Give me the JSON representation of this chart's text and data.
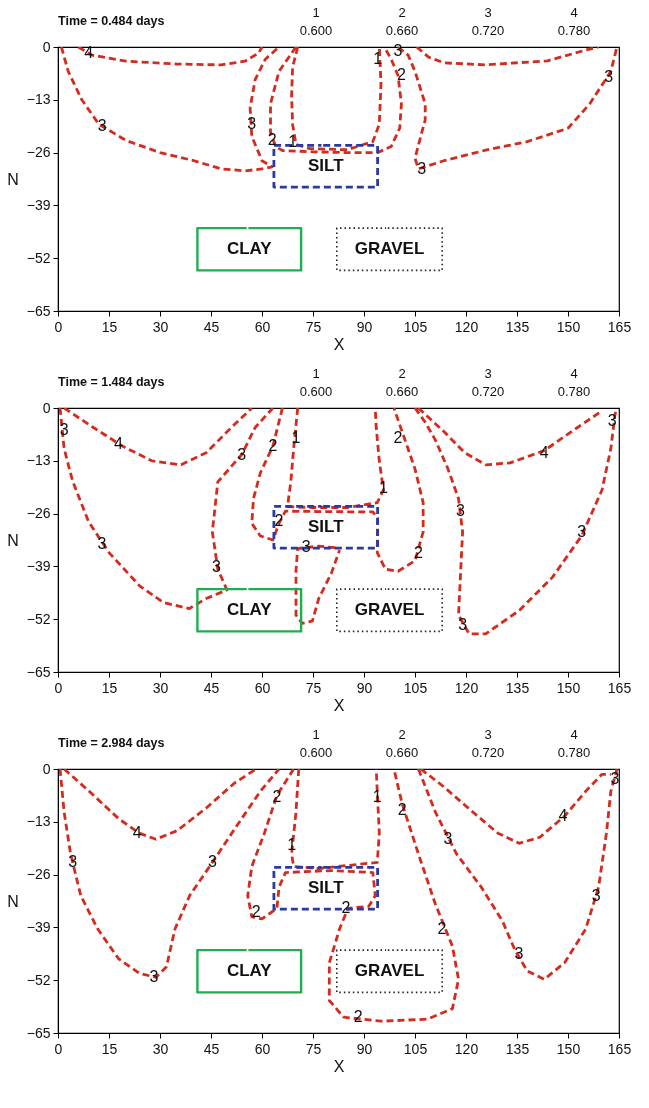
{
  "chart_data": [
    {
      "type": "line",
      "title": "Time = 0.484 days",
      "xlabel": "X",
      "ylabel": "N",
      "xlim": [
        0,
        165
      ],
      "xticks": [
        0,
        15,
        30,
        45,
        60,
        75,
        90,
        105,
        120,
        135,
        150,
        165
      ],
      "ylim": [
        -65,
        0
      ],
      "yticks": [
        0,
        -13,
        -26,
        -39,
        -52,
        -65
      ],
      "grid": false,
      "series": [
        {
          "color": "#d52b1e",
          "line_style": "dashed",
          "x": [
            6,
            10,
            20,
            35,
            48,
            55,
            59,
            60
          ],
          "values": [
            0,
            -2,
            -3.5,
            -4.2,
            -4.4,
            -3.5,
            -1.5,
            0
          ]
        },
        {
          "color": "#d52b1e",
          "line_style": "dashed",
          "x": [
            1,
            3,
            7,
            12,
            20,
            30,
            40,
            48,
            55,
            60,
            63,
            60,
            57,
            56.5,
            58,
            61,
            65
          ],
          "values": [
            0,
            -6,
            -13,
            -19,
            -23,
            -26,
            -28,
            -30,
            -30.5,
            -30,
            -29.5,
            -28,
            -22,
            -15,
            -8,
            -3,
            0
          ]
        },
        {
          "color": "#d52b1e",
          "line_style": "dashed",
          "x": [
            70,
            65,
            62.5,
            62.5,
            64,
            66,
            75,
            85,
            94,
            98,
            100.5,
            101,
            100,
            98,
            96
          ],
          "values": [
            0,
            -6,
            -14,
            -21,
            -24.5,
            -25.5,
            -25.8,
            -26,
            -26,
            -24.5,
            -20,
            -14,
            -7,
            -3,
            0
          ]
        },
        {
          "color": "#d52b1e",
          "line_style": "dashed",
          "x": [
            70.5,
            69,
            68.7,
            69,
            70,
            74,
            85,
            92.6,
            94.5,
            95,
            94.5
          ],
          "values": [
            0,
            -5,
            -12,
            -19,
            -24,
            -25,
            -25.3,
            -23.3,
            -19,
            -9,
            0
          ]
        },
        {
          "color": "#d52b1e",
          "line_style": "dashed",
          "x": [
            100,
            103,
            105,
            108,
            108,
            107,
            105,
            106,
            113.5,
            125.8,
            138,
            150,
            156.4,
            162.6,
            164.4
          ],
          "values": [
            0,
            -2,
            -6,
            -14,
            -18,
            -21,
            -27.4,
            -30,
            -28,
            -25.4,
            -23.3,
            -20,
            -14,
            -6,
            0
          ]
        },
        {
          "color": "#d52b1e",
          "line_style": "dashed",
          "x": [
            105.5,
            109,
            113.5,
            125.8,
            144,
            155,
            159
          ],
          "values": [
            0,
            -2.5,
            -3.9,
            -4.4,
            -3.4,
            -0.8,
            0
          ]
        },
        {
          "name": "SILT",
          "color": "#2b3aa0",
          "line_style": "dashed",
          "x": [
            78,
            94,
            94,
            63.5,
            63.5,
            77.5
          ],
          "values": [
            -24.2,
            -24.2,
            -34.5,
            -34.5,
            -24.2,
            -24.2
          ]
        },
        {
          "name": "CLAY",
          "color": "#1fae4f",
          "line_style": "solid",
          "x": [
            56,
            71.5,
            71.5,
            41,
            41,
            55.5
          ],
          "values": [
            -44.6,
            -44.6,
            -55,
            -55,
            -44.6,
            -44.6
          ]
        },
        {
          "name": "GRAVEL",
          "color": "#222222",
          "line_style": "dotted",
          "x": [
            97,
            113,
            113,
            82,
            82,
            96.5
          ],
          "values": [
            -44.6,
            -44.6,
            -55,
            -55,
            -44.6,
            -44.6
          ]
        }
      ],
      "annotations": [
        "1",
        "0.600",
        "2",
        "0.660",
        "3",
        "0.720",
        "4",
        "0.780",
        {
          "text": "4",
          "x": 9,
          "y": -1.5
        },
        {
          "text": "3",
          "x": 13,
          "y": -19.5
        },
        {
          "text": "3",
          "x": 57,
          "y": -19
        },
        {
          "text": "2",
          "x": 63,
          "y": -23
        },
        {
          "text": "1",
          "x": 69,
          "y": -23.5
        },
        {
          "text": "1",
          "x": 94,
          "y": -3
        },
        {
          "text": "3",
          "x": 100,
          "y": -1
        },
        {
          "text": "2",
          "x": 101,
          "y": -7
        },
        {
          "text": "3",
          "x": 107,
          "y": -30
        },
        {
          "text": "3",
          "x": 162,
          "y": -7.5
        }
      ]
    },
    {
      "type": "line",
      "title": "Time = 1.484 days",
      "xlabel": "X",
      "ylabel": "N",
      "xlim": [
        0,
        165
      ],
      "xticks": [
        0,
        15,
        30,
        45,
        60,
        75,
        90,
        105,
        120,
        135,
        150,
        165
      ],
      "ylim": [
        -65,
        0
      ],
      "yticks": [
        0,
        -13,
        -26,
        -39,
        -52,
        -65
      ],
      "grid": false,
      "series": [
        {
          "color": "#d52b1e",
          "line_style": "dashed",
          "x": [
            0.6,
            1.8,
            4.3,
            9,
            15,
            24,
            31,
            38.6,
            43.6,
            49.7,
            47,
            45.4,
            47,
            54,
            58,
            63.2
          ],
          "values": [
            0,
            -10,
            -18,
            -28,
            -35.6,
            -43.8,
            -47.9,
            -49.4,
            -46.9,
            -44.8,
            -39.7,
            -30.5,
            -18.2,
            -11.5,
            -4.8,
            0
          ]
        },
        {
          "color": "#d52b1e",
          "line_style": "dashed",
          "x": [
            1.8,
            10.4,
            19,
            27.6,
            36.2,
            43.6,
            51,
            57
          ],
          "values": [
            0,
            -4.8,
            -9.4,
            -13,
            -14,
            -11,
            -4.8,
            0
          ]
        },
        {
          "color": "#d52b1e",
          "line_style": "dashed",
          "x": [
            66,
            63.2,
            59.5,
            57.5,
            57,
            59.5,
            63.2,
            65,
            66.9,
            76.7,
            92.6,
            94,
            93.9,
            96.3,
            100,
            105,
            107.4,
            107.4,
            105,
            101.2,
            98.8
          ],
          "values": [
            0,
            -9.4,
            -16,
            -22.3,
            -28.4,
            -31.5,
            -32.5,
            -28.4,
            -25.4,
            -25.5,
            -25.6,
            -27,
            -35.6,
            -39.7,
            -40.2,
            -37.6,
            -30.5,
            -23.3,
            -15,
            -5.8,
            0
          ]
        },
        {
          "color": "#d52b1e",
          "line_style": "dashed",
          "x": [
            70.5,
            69.3,
            68.5,
            67.5,
            75,
            85,
            93.9,
            95.7,
            94.5,
            93.6,
            93.3
          ],
          "values": [
            0,
            -10,
            -18,
            -24.3,
            -24.5,
            -24.5,
            -23.3,
            -20.2,
            -13,
            -4.8,
            0
          ]
        },
        {
          "color": "#d52b1e",
          "line_style": "dashed",
          "x": [
            81.5,
            76.7,
            70.5,
            70,
            70,
            71.8,
            74.8,
            76.7,
            80.4,
            82.8
          ],
          "values": [
            -34.4,
            -34,
            -34.6,
            -40,
            -51,
            -53,
            -52.5,
            -46.9,
            -40.7,
            -35
          ]
        },
        {
          "color": "#d52b1e",
          "line_style": "dashed",
          "x": [
            105,
            108,
            111,
            114.7,
            117.8,
            119,
            118.4,
            117.8,
            120.9,
            125.8,
            135.6,
            145.4,
            154,
            160,
            162.6,
            163.8,
            164.4
          ],
          "values": [
            0,
            -3.5,
            -7.9,
            -15,
            -22.3,
            -30.5,
            -40.7,
            -51,
            -55.6,
            -55.6,
            -49.9,
            -41.7,
            -31.5,
            -20.2,
            -10,
            -1.7,
            0
          ]
        },
        {
          "color": "#d52b1e",
          "line_style": "dashed",
          "x": [
            106,
            113.5,
            119.6,
            125.8,
            133,
            143,
            152.8,
            160
          ],
          "values": [
            0,
            -5.8,
            -11,
            -14,
            -13.5,
            -10.5,
            -4.8,
            -0.7
          ]
        },
        {
          "name": "SILT",
          "color": "#2b3aa0",
          "line_style": "dashed",
          "x": [
            78,
            94,
            94,
            63.5,
            63.5,
            77.5
          ],
          "values": [
            -24.2,
            -24.2,
            -34.5,
            -34.5,
            -24.2,
            -24.2
          ]
        },
        {
          "name": "CLAY",
          "color": "#1fae4f",
          "line_style": "solid",
          "x": [
            56,
            71.5,
            71.5,
            41,
            41,
            55.5
          ],
          "values": [
            -44.6,
            -44.6,
            -55,
            -55,
            -44.6,
            -44.6
          ]
        },
        {
          "name": "GRAVEL",
          "color": "#222222",
          "line_style": "dotted",
          "x": [
            97,
            113,
            113,
            82,
            82,
            96.5
          ],
          "values": [
            -44.6,
            -44.6,
            -55,
            -55,
            -44.6,
            -44.6
          ]
        }
      ],
      "annotations": [
        "1",
        "0.600",
        "2",
        "0.660",
        "3",
        "0.720",
        "4",
        "0.780",
        {
          "text": "3",
          "x": 1.8,
          "y": -5.3
        },
        {
          "text": "4",
          "x": 17.8,
          "y": -8.9
        },
        {
          "text": "3",
          "x": 12.9,
          "y": -33.5
        },
        {
          "text": "3",
          "x": 54,
          "y": -11.5
        },
        {
          "text": "2",
          "x": 63.2,
          "y": -9.4
        },
        {
          "text": "1",
          "x": 70,
          "y": -7.4
        },
        {
          "text": "3",
          "x": 46.6,
          "y": -39.2
        },
        {
          "text": "2",
          "x": 65,
          "y": -27.9
        },
        {
          "text": "3",
          "x": 73,
          "y": -34.3
        },
        {
          "text": "1",
          "x": 95.7,
          "y": -19.7
        },
        {
          "text": "2",
          "x": 100,
          "y": -7.4
        },
        {
          "text": "3",
          "x": 118.4,
          "y": -25.3
        },
        {
          "text": "2",
          "x": 106,
          "y": -35.6
        },
        {
          "text": "3",
          "x": 119,
          "y": -53.5
        },
        {
          "text": "3",
          "x": 154,
          "y": -30.6
        },
        {
          "text": "4",
          "x": 143,
          "y": -11
        },
        {
          "text": "3",
          "x": 163,
          "y": -3.3
        }
      ]
    },
    {
      "type": "line",
      "title": "Time = 2.984 days",
      "xlabel": "X",
      "ylabel": "N",
      "xlim": [
        0,
        165
      ],
      "xticks": [
        0,
        15,
        30,
        45,
        60,
        75,
        90,
        105,
        120,
        135,
        150,
        165
      ],
      "ylim": [
        -65,
        0
      ],
      "yticks": [
        0,
        -13,
        -26,
        -39,
        -52,
        -65
      ],
      "grid": false,
      "series": [
        {
          "color": "#d52b1e",
          "line_style": "dashed",
          "x": [
            1.8,
            9.2,
            17.8,
            23.9,
            28.8,
            35,
            43.6,
            52,
            58.3
          ],
          "values": [
            0,
            -5.5,
            -12.2,
            -15.8,
            -17.3,
            -15.2,
            -9.6,
            -3.4,
            0
          ]
        },
        {
          "color": "#d52b1e",
          "line_style": "dashed",
          "x": [
            0.6,
            1.8,
            3.7,
            6.7,
            11.7,
            17.8,
            23.9,
            28.8,
            31.9,
            34.4,
            38.7,
            45.4,
            52,
            59.5,
            65
          ],
          "values": [
            0,
            -10.6,
            -20.9,
            -31.2,
            -39.4,
            -46.7,
            -50.3,
            -51.3,
            -48.7,
            -39.4,
            -31.2,
            -23,
            -14.7,
            -5.5,
            0
          ]
        },
        {
          "color": "#d52b1e",
          "line_style": "dashed",
          "x": [
            69.3,
            64.4,
            60.7,
            57,
            55.8,
            57,
            60,
            64.4,
            65,
            66.9,
            80.4,
            92.6,
            93.3,
            91.4,
            85.3,
            82.8,
            79.8,
            79.8,
            84,
            95,
            108.6,
            116,
            117.8,
            116,
            111,
            106,
            101.2,
            98.8
          ],
          "values": [
            0,
            -6.5,
            -15.8,
            -24,
            -31.2,
            -36.4,
            -36.9,
            -34.3,
            -29.1,
            -25.5,
            -25,
            -25.5,
            -31.2,
            -33.8,
            -34.3,
            -39.4,
            -47.7,
            -57,
            -61.1,
            -62.1,
            -61.6,
            -59,
            -51.8,
            -43.6,
            -33.3,
            -20.9,
            -8.5,
            0
          ]
        },
        {
          "color": "#d52b1e",
          "line_style": "dashed",
          "x": [
            70.8,
            70,
            68.7,
            69.3,
            76.7,
            93.9,
            94.5,
            93.9,
            93.6
          ],
          "values": [
            0,
            -10.6,
            -20.9,
            -24,
            -24.5,
            -23,
            -15.8,
            -5.5,
            0
          ]
        },
        {
          "color": "#d52b1e",
          "line_style": "dashed",
          "x": [
            106,
            111,
            117.2,
            124.5,
            130.7,
            134.4,
            138,
            143,
            149,
            155.2,
            159,
            161.3,
            162.6,
            164.4
          ],
          "values": [
            0,
            -10.6,
            -20.9,
            -29.1,
            -37.4,
            -44.6,
            -49.7,
            -51.8,
            -47.7,
            -39.4,
            -29.1,
            -15.8,
            -5.5,
            0
          ]
        },
        {
          "color": "#d52b1e",
          "line_style": "dashed",
          "x": [
            106.7,
            113.5,
            122,
            129.4,
            135.6,
            141.7,
            149,
            155.2,
            160,
            162.6
          ],
          "values": [
            0,
            -4.4,
            -10.6,
            -15.8,
            -18.3,
            -16.8,
            -11.6,
            -5.5,
            -1.3,
            -1.3
          ]
        },
        {
          "name": "SILT",
          "color": "#2b3aa0",
          "line_style": "dashed",
          "x": [
            78,
            94,
            94,
            63.5,
            63.5,
            77.5
          ],
          "values": [
            -24.2,
            -24.2,
            -34.5,
            -34.5,
            -24.2,
            -24.2
          ]
        },
        {
          "name": "CLAY",
          "color": "#1fae4f",
          "line_style": "solid",
          "x": [
            56,
            71.5,
            71.5,
            41,
            41,
            55.5
          ],
          "values": [
            -44.6,
            -44.6,
            -55,
            -55,
            -44.6,
            -44.6
          ]
        },
        {
          "name": "GRAVEL",
          "color": "#222222",
          "line_style": "dotted",
          "x": [
            97,
            113,
            113,
            82,
            82,
            96.5
          ],
          "values": [
            -44.6,
            -44.6,
            -55,
            -55,
            -44.6,
            -44.6
          ]
        }
      ],
      "annotations": [
        "1",
        "0.600",
        "2",
        "0.660",
        "3",
        "0.720",
        "4",
        "0.780",
        {
          "text": "4",
          "x": 23.3,
          "y": -15.8
        },
        {
          "text": "3",
          "x": 4.3,
          "y": -23
        },
        {
          "text": "3",
          "x": 45.4,
          "y": -23
        },
        {
          "text": "3",
          "x": 28.2,
          "y": -51.3
        },
        {
          "text": "2",
          "x": 64.4,
          "y": -7
        },
        {
          "text": "1",
          "x": 68.7,
          "y": -18.8
        },
        {
          "text": "2",
          "x": 58.3,
          "y": -35.3
        },
        {
          "text": "2",
          "x": 84.7,
          "y": -34.3
        },
        {
          "text": "1",
          "x": 93.9,
          "y": -7
        },
        {
          "text": "2",
          "x": 101.2,
          "y": -10.1
        },
        {
          "text": "3",
          "x": 114.7,
          "y": -17.3
        },
        {
          "text": "2",
          "x": 112.9,
          "y": -39.4
        },
        {
          "text": "2",
          "x": 88.3,
          "y": -61.1
        },
        {
          "text": "3",
          "x": 135.6,
          "y": -45.6
        },
        {
          "text": "4",
          "x": 148.5,
          "y": -11.6
        },
        {
          "text": "3",
          "x": 158.3,
          "y": -31.2
        },
        {
          "text": "3",
          "x": 163.8,
          "y": -2.4
        }
      ]
    }
  ]
}
